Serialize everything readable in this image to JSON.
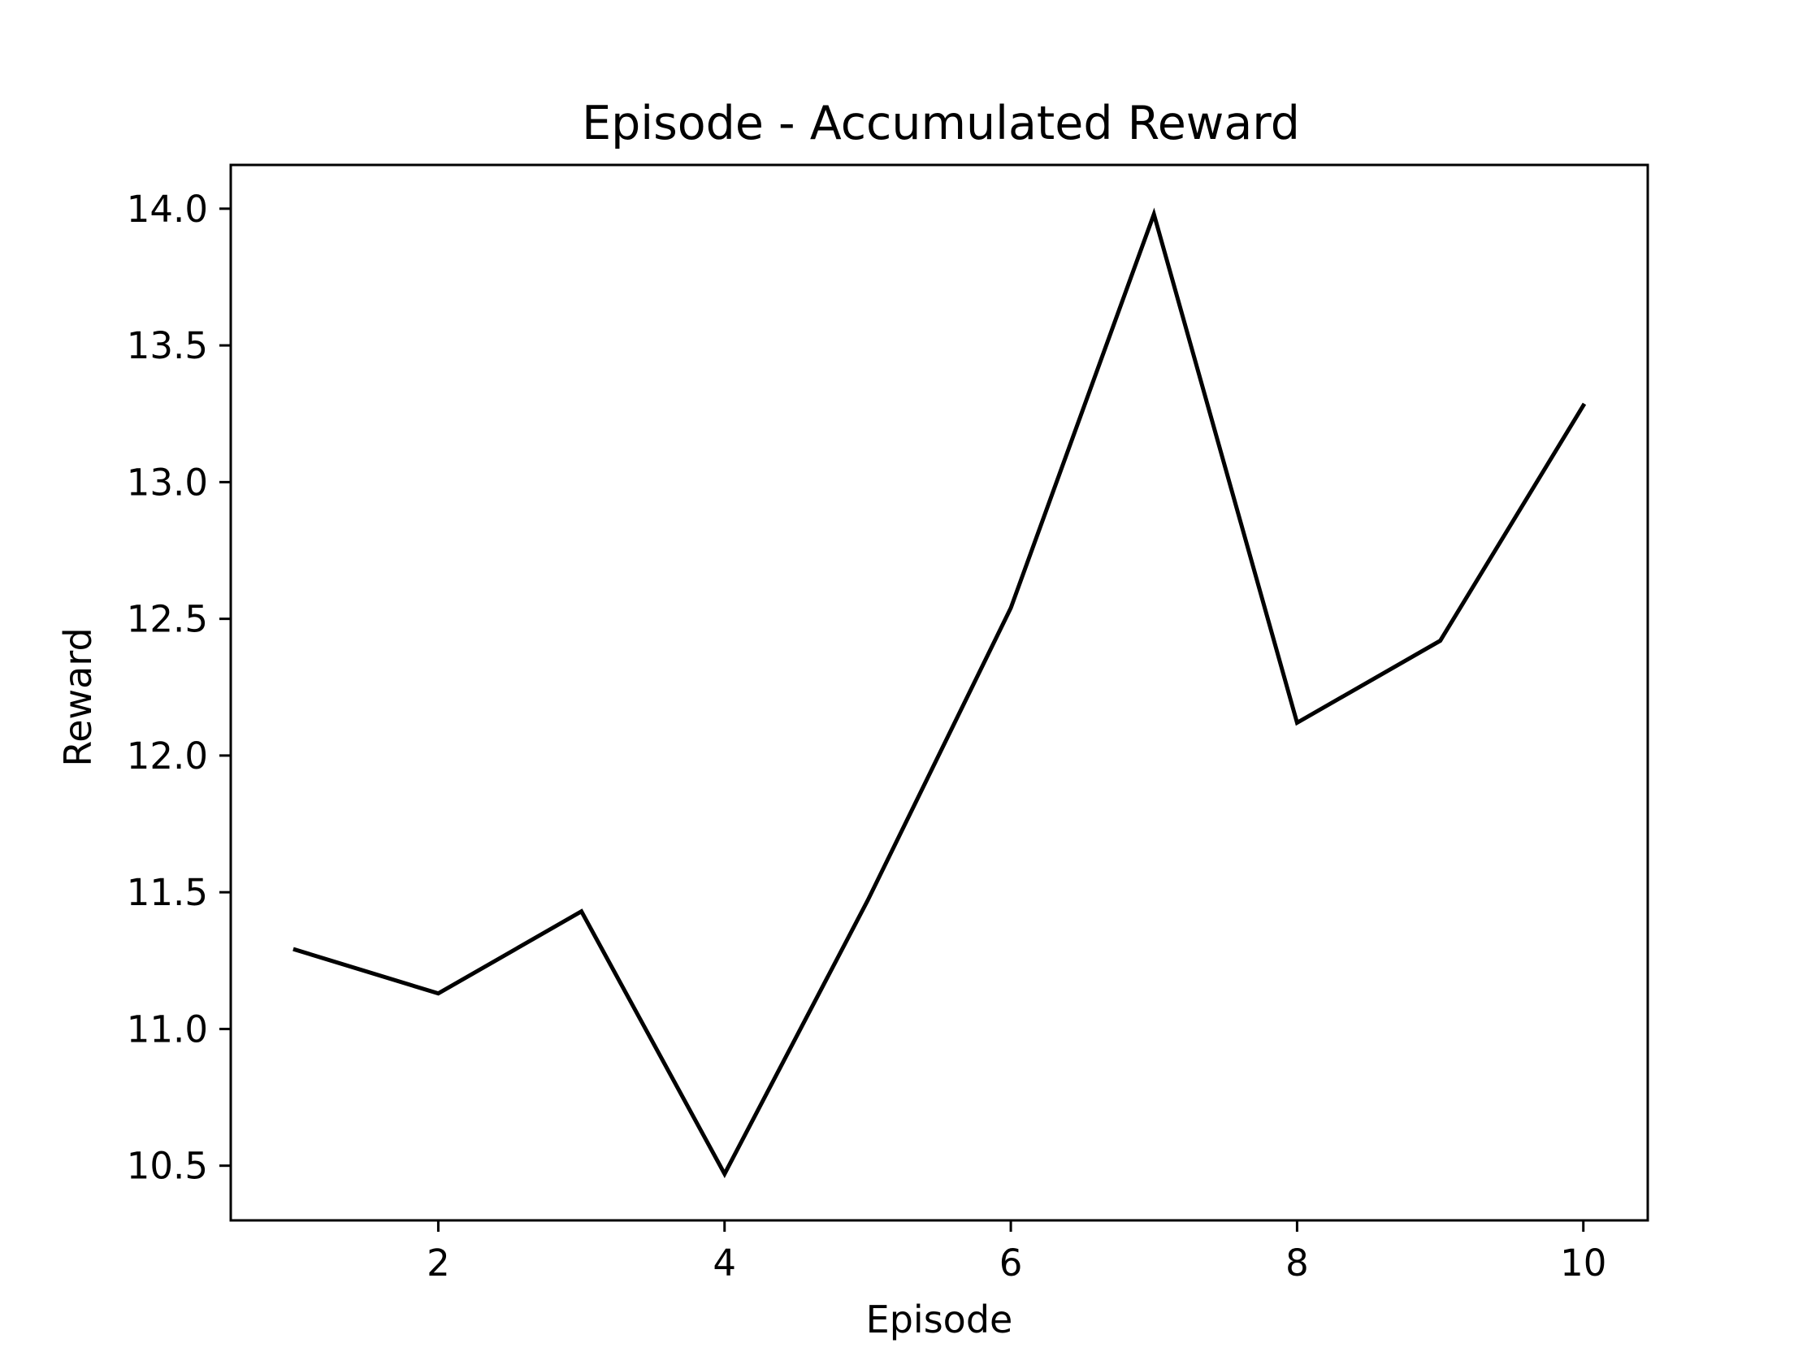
{
  "chart_data": {
    "type": "line",
    "title": "Episode - Accumulated Reward",
    "xlabel": "Episode",
    "ylabel": "Reward",
    "x": [
      1,
      2,
      3,
      4,
      5,
      6,
      7,
      8,
      9,
      10
    ],
    "series": [
      {
        "values": [
          11.29,
          11.13,
          11.43,
          10.47,
          11.47,
          12.54,
          13.98,
          12.12,
          12.42,
          13.28
        ],
        "color": "#000000"
      }
    ],
    "xticks": [
      "2",
      "4",
      "6",
      "8",
      "10"
    ],
    "yticks": [
      "10.5",
      "11.0",
      "11.5",
      "12.0",
      "12.5",
      "13.0",
      "13.5",
      "14.0"
    ],
    "xlim": [
      0.55,
      10.45
    ],
    "ylim": [
      10.3,
      14.16
    ],
    "grid": false,
    "legend": "none"
  }
}
